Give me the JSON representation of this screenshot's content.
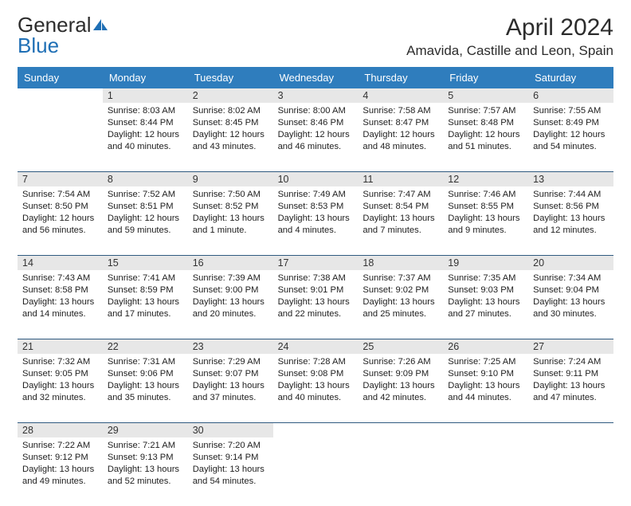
{
  "brand": {
    "word1": "General",
    "word2": "Blue"
  },
  "title": {
    "month": "April 2024",
    "location": "Amavida, Castille and Leon, Spain"
  },
  "colors": {
    "header_bg": "#2f7dbd",
    "header_text": "#ffffff",
    "daynum_bg": "#e7e7e7",
    "border": "#2f5a80",
    "brand_blue": "#1f6fb5"
  },
  "day_headers": [
    "Sunday",
    "Monday",
    "Tuesday",
    "Wednesday",
    "Thursday",
    "Friday",
    "Saturday"
  ],
  "weeks": [
    {
      "daynums": [
        "",
        "1",
        "2",
        "3",
        "4",
        "5",
        "6"
      ],
      "cells": [
        null,
        {
          "sunrise": "Sunrise: 8:03 AM",
          "sunset": "Sunset: 8:44 PM",
          "dl1": "Daylight: 12 hours",
          "dl2": "and 40 minutes."
        },
        {
          "sunrise": "Sunrise: 8:02 AM",
          "sunset": "Sunset: 8:45 PM",
          "dl1": "Daylight: 12 hours",
          "dl2": "and 43 minutes."
        },
        {
          "sunrise": "Sunrise: 8:00 AM",
          "sunset": "Sunset: 8:46 PM",
          "dl1": "Daylight: 12 hours",
          "dl2": "and 46 minutes."
        },
        {
          "sunrise": "Sunrise: 7:58 AM",
          "sunset": "Sunset: 8:47 PM",
          "dl1": "Daylight: 12 hours",
          "dl2": "and 48 minutes."
        },
        {
          "sunrise": "Sunrise: 7:57 AM",
          "sunset": "Sunset: 8:48 PM",
          "dl1": "Daylight: 12 hours",
          "dl2": "and 51 minutes."
        },
        {
          "sunrise": "Sunrise: 7:55 AM",
          "sunset": "Sunset: 8:49 PM",
          "dl1": "Daylight: 12 hours",
          "dl2": "and 54 minutes."
        }
      ]
    },
    {
      "daynums": [
        "7",
        "8",
        "9",
        "10",
        "11",
        "12",
        "13"
      ],
      "cells": [
        {
          "sunrise": "Sunrise: 7:54 AM",
          "sunset": "Sunset: 8:50 PM",
          "dl1": "Daylight: 12 hours",
          "dl2": "and 56 minutes."
        },
        {
          "sunrise": "Sunrise: 7:52 AM",
          "sunset": "Sunset: 8:51 PM",
          "dl1": "Daylight: 12 hours",
          "dl2": "and 59 minutes."
        },
        {
          "sunrise": "Sunrise: 7:50 AM",
          "sunset": "Sunset: 8:52 PM",
          "dl1": "Daylight: 13 hours",
          "dl2": "and 1 minute."
        },
        {
          "sunrise": "Sunrise: 7:49 AM",
          "sunset": "Sunset: 8:53 PM",
          "dl1": "Daylight: 13 hours",
          "dl2": "and 4 minutes."
        },
        {
          "sunrise": "Sunrise: 7:47 AM",
          "sunset": "Sunset: 8:54 PM",
          "dl1": "Daylight: 13 hours",
          "dl2": "and 7 minutes."
        },
        {
          "sunrise": "Sunrise: 7:46 AM",
          "sunset": "Sunset: 8:55 PM",
          "dl1": "Daylight: 13 hours",
          "dl2": "and 9 minutes."
        },
        {
          "sunrise": "Sunrise: 7:44 AM",
          "sunset": "Sunset: 8:56 PM",
          "dl1": "Daylight: 13 hours",
          "dl2": "and 12 minutes."
        }
      ]
    },
    {
      "daynums": [
        "14",
        "15",
        "16",
        "17",
        "18",
        "19",
        "20"
      ],
      "cells": [
        {
          "sunrise": "Sunrise: 7:43 AM",
          "sunset": "Sunset: 8:58 PM",
          "dl1": "Daylight: 13 hours",
          "dl2": "and 14 minutes."
        },
        {
          "sunrise": "Sunrise: 7:41 AM",
          "sunset": "Sunset: 8:59 PM",
          "dl1": "Daylight: 13 hours",
          "dl2": "and 17 minutes."
        },
        {
          "sunrise": "Sunrise: 7:39 AM",
          "sunset": "Sunset: 9:00 PM",
          "dl1": "Daylight: 13 hours",
          "dl2": "and 20 minutes."
        },
        {
          "sunrise": "Sunrise: 7:38 AM",
          "sunset": "Sunset: 9:01 PM",
          "dl1": "Daylight: 13 hours",
          "dl2": "and 22 minutes."
        },
        {
          "sunrise": "Sunrise: 7:37 AM",
          "sunset": "Sunset: 9:02 PM",
          "dl1": "Daylight: 13 hours",
          "dl2": "and 25 minutes."
        },
        {
          "sunrise": "Sunrise: 7:35 AM",
          "sunset": "Sunset: 9:03 PM",
          "dl1": "Daylight: 13 hours",
          "dl2": "and 27 minutes."
        },
        {
          "sunrise": "Sunrise: 7:34 AM",
          "sunset": "Sunset: 9:04 PM",
          "dl1": "Daylight: 13 hours",
          "dl2": "and 30 minutes."
        }
      ]
    },
    {
      "daynums": [
        "21",
        "22",
        "23",
        "24",
        "25",
        "26",
        "27"
      ],
      "cells": [
        {
          "sunrise": "Sunrise: 7:32 AM",
          "sunset": "Sunset: 9:05 PM",
          "dl1": "Daylight: 13 hours",
          "dl2": "and 32 minutes."
        },
        {
          "sunrise": "Sunrise: 7:31 AM",
          "sunset": "Sunset: 9:06 PM",
          "dl1": "Daylight: 13 hours",
          "dl2": "and 35 minutes."
        },
        {
          "sunrise": "Sunrise: 7:29 AM",
          "sunset": "Sunset: 9:07 PM",
          "dl1": "Daylight: 13 hours",
          "dl2": "and 37 minutes."
        },
        {
          "sunrise": "Sunrise: 7:28 AM",
          "sunset": "Sunset: 9:08 PM",
          "dl1": "Daylight: 13 hours",
          "dl2": "and 40 minutes."
        },
        {
          "sunrise": "Sunrise: 7:26 AM",
          "sunset": "Sunset: 9:09 PM",
          "dl1": "Daylight: 13 hours",
          "dl2": "and 42 minutes."
        },
        {
          "sunrise": "Sunrise: 7:25 AM",
          "sunset": "Sunset: 9:10 PM",
          "dl1": "Daylight: 13 hours",
          "dl2": "and 44 minutes."
        },
        {
          "sunrise": "Sunrise: 7:24 AM",
          "sunset": "Sunset: 9:11 PM",
          "dl1": "Daylight: 13 hours",
          "dl2": "and 47 minutes."
        }
      ]
    },
    {
      "daynums": [
        "28",
        "29",
        "30",
        "",
        "",
        "",
        ""
      ],
      "cells": [
        {
          "sunrise": "Sunrise: 7:22 AM",
          "sunset": "Sunset: 9:12 PM",
          "dl1": "Daylight: 13 hours",
          "dl2": "and 49 minutes."
        },
        {
          "sunrise": "Sunrise: 7:21 AM",
          "sunset": "Sunset: 9:13 PM",
          "dl1": "Daylight: 13 hours",
          "dl2": "and 52 minutes."
        },
        {
          "sunrise": "Sunrise: 7:20 AM",
          "sunset": "Sunset: 9:14 PM",
          "dl1": "Daylight: 13 hours",
          "dl2": "and 54 minutes."
        },
        null,
        null,
        null,
        null
      ]
    }
  ]
}
